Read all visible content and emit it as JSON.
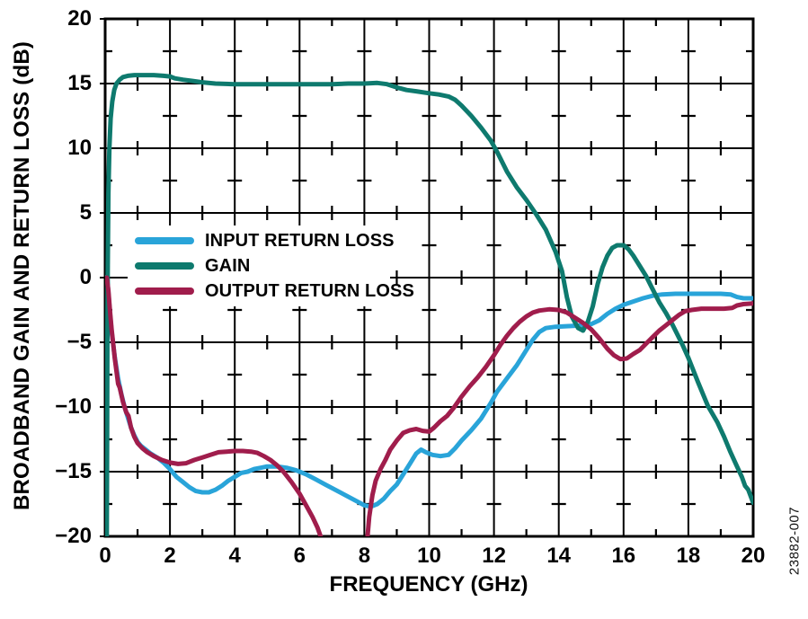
{
  "figure": {
    "watermark": "23882-007",
    "background": "#ffffff",
    "grid_color": "#000000",
    "border_color": "#000000"
  },
  "chart_data": {
    "type": "line",
    "title": "",
    "xlabel": "FREQUENCY (GHz)",
    "ylabel": "BROADBAND GAIN AND RETURN LOSS (dB)",
    "xlim": [
      0,
      20
    ],
    "ylim": [
      -20,
      20
    ],
    "x_ticks": [
      0,
      2,
      4,
      6,
      8,
      10,
      12,
      14,
      16,
      18,
      20
    ],
    "y_ticks": [
      20,
      15,
      10,
      5,
      0,
      -5,
      -10,
      -15,
      -20
    ],
    "x_minor_positions": [
      1,
      3,
      5,
      7,
      9,
      11,
      13,
      15,
      17,
      19
    ],
    "y_minor_positions": [
      17.5,
      12.5,
      7.5,
      2.5,
      -2.5,
      -7.5,
      -12.5,
      -17.5
    ],
    "grid": true,
    "legend_position": "inside-upper-left",
    "series": [
      {
        "name": "INPUT RETURN LOSS",
        "color": "#29A4D9",
        "segments": [
          [
            [
              0.06,
              0.1
            ],
            [
              0.1,
              -1.2
            ],
            [
              0.15,
              -2.8
            ],
            [
              0.2,
              -4.2
            ],
            [
              0.3,
              -6.2
            ],
            [
              0.4,
              -7.8
            ],
            [
              0.5,
              -9.0
            ],
            [
              0.6,
              -10.0
            ],
            [
              0.7,
              -10.8
            ],
            [
              0.8,
              -11.6
            ],
            [
              0.9,
              -12.2
            ],
            [
              1.0,
              -12.7
            ],
            [
              1.1,
              -13.0
            ],
            [
              1.25,
              -13.3
            ],
            [
              1.4,
              -13.6
            ],
            [
              1.6,
              -13.9
            ],
            [
              1.8,
              -14.3
            ],
            [
              2.0,
              -14.8
            ],
            [
              2.2,
              -15.4
            ],
            [
              2.4,
              -15.8
            ],
            [
              2.6,
              -16.2
            ],
            [
              2.8,
              -16.5
            ],
            [
              3.0,
              -16.6
            ],
            [
              3.2,
              -16.6
            ],
            [
              3.4,
              -16.4
            ],
            [
              3.6,
              -16.1
            ],
            [
              3.8,
              -15.7
            ],
            [
              4.0,
              -15.4
            ],
            [
              4.2,
              -15.1
            ],
            [
              4.4,
              -15.0
            ],
            [
              4.6,
              -14.8
            ],
            [
              4.8,
              -14.7
            ],
            [
              5.0,
              -14.6
            ],
            [
              5.3,
              -14.6
            ],
            [
              5.6,
              -14.7
            ],
            [
              5.9,
              -14.9
            ],
            [
              6.2,
              -15.2
            ],
            [
              6.5,
              -15.6
            ],
            [
              6.8,
              -16.0
            ],
            [
              7.1,
              -16.4
            ],
            [
              7.4,
              -16.8
            ],
            [
              7.7,
              -17.2
            ],
            [
              8.0,
              -17.6
            ],
            [
              8.2,
              -17.7
            ],
            [
              8.4,
              -17.5
            ],
            [
              8.6,
              -17.1
            ],
            [
              8.8,
              -16.5
            ],
            [
              9.0,
              -16.0
            ],
            [
              9.2,
              -15.2
            ],
            [
              9.4,
              -14.4
            ],
            [
              9.6,
              -13.6
            ],
            [
              9.75,
              -13.3
            ],
            [
              9.9,
              -13.5
            ],
            [
              10.1,
              -13.7
            ],
            [
              10.35,
              -13.8
            ],
            [
              10.6,
              -13.7
            ],
            [
              10.8,
              -13.2
            ],
            [
              11.0,
              -12.6
            ],
            [
              11.3,
              -11.8
            ],
            [
              11.6,
              -10.9
            ],
            [
              11.9,
              -9.7
            ],
            [
              12.1,
              -8.8
            ],
            [
              12.4,
              -7.8
            ],
            [
              12.7,
              -6.8
            ],
            [
              13.0,
              -5.6
            ],
            [
              13.2,
              -4.8
            ],
            [
              13.4,
              -4.2
            ],
            [
              13.6,
              -3.9
            ],
            [
              13.9,
              -3.8
            ],
            [
              14.3,
              -3.75
            ],
            [
              14.7,
              -3.7
            ],
            [
              15.0,
              -3.6
            ],
            [
              15.25,
              -3.3
            ],
            [
              15.5,
              -2.8
            ],
            [
              15.75,
              -2.4
            ],
            [
              16.0,
              -2.1
            ],
            [
              16.3,
              -1.85
            ],
            [
              16.6,
              -1.6
            ],
            [
              16.9,
              -1.4
            ],
            [
              17.2,
              -1.3
            ],
            [
              17.6,
              -1.25
            ],
            [
              18.0,
              -1.25
            ],
            [
              18.5,
              -1.25
            ],
            [
              19.0,
              -1.25
            ],
            [
              19.3,
              -1.3
            ],
            [
              19.5,
              -1.5
            ],
            [
              19.7,
              -1.6
            ],
            [
              20.0,
              -1.6
            ]
          ]
        ]
      },
      {
        "name": "GAIN",
        "color": "#0E7A6E",
        "segments": [
          [
            [
              0.05,
              -20.5
            ],
            [
              0.06,
              -12
            ],
            [
              0.07,
              -4
            ],
            [
              0.08,
              1
            ],
            [
              0.1,
              6.5
            ],
            [
              0.13,
              10
            ],
            [
              0.17,
              12.3
            ],
            [
              0.22,
              13.6
            ],
            [
              0.28,
              14.5
            ],
            [
              0.35,
              15.0
            ],
            [
              0.45,
              15.3
            ],
            [
              0.55,
              15.5
            ],
            [
              0.7,
              15.6
            ],
            [
              0.9,
              15.65
            ],
            [
              1.2,
              15.65
            ],
            [
              1.5,
              15.65
            ],
            [
              1.8,
              15.6
            ],
            [
              2.0,
              15.55
            ],
            [
              2.15,
              15.4
            ],
            [
              2.4,
              15.3
            ],
            [
              2.7,
              15.2
            ],
            [
              3.0,
              15.1
            ],
            [
              3.4,
              15.0
            ],
            [
              4.0,
              14.95
            ],
            [
              4.5,
              14.95
            ],
            [
              5.0,
              14.95
            ],
            [
              5.5,
              14.95
            ],
            [
              6.0,
              14.95
            ],
            [
              6.5,
              14.95
            ],
            [
              7.0,
              14.95
            ],
            [
              7.5,
              15.0
            ],
            [
              8.0,
              15.0
            ],
            [
              8.4,
              15.05
            ],
            [
              8.7,
              14.95
            ],
            [
              9.0,
              14.7
            ],
            [
              9.3,
              14.5
            ],
            [
              9.6,
              14.4
            ],
            [
              10.0,
              14.25
            ],
            [
              10.3,
              14.15
            ],
            [
              10.6,
              14.0
            ],
            [
              10.8,
              13.75
            ],
            [
              11.0,
              13.3
            ],
            [
              11.3,
              12.5
            ],
            [
              11.6,
              11.6
            ],
            [
              11.9,
              10.6
            ],
            [
              12.1,
              9.7
            ],
            [
              12.4,
              8.2
            ],
            [
              12.7,
              7.0
            ],
            [
              13.0,
              6.0
            ],
            [
              13.3,
              4.9
            ],
            [
              13.6,
              3.7
            ],
            [
              13.9,
              2.0
            ],
            [
              14.1,
              0.5
            ],
            [
              14.25,
              -1.5
            ],
            [
              14.4,
              -3.0
            ],
            [
              14.6,
              -3.9
            ],
            [
              14.75,
              -4.1
            ],
            [
              14.9,
              -3.4
            ],
            [
              15.05,
              -2.2
            ],
            [
              15.2,
              -0.5
            ],
            [
              15.35,
              0.8
            ],
            [
              15.5,
              1.7
            ],
            [
              15.65,
              2.3
            ],
            [
              15.8,
              2.5
            ],
            [
              16.0,
              2.5
            ],
            [
              16.15,
              2.2
            ],
            [
              16.3,
              1.7
            ],
            [
              16.5,
              0.9
            ],
            [
              16.7,
              0.1
            ],
            [
              16.9,
              -0.9
            ],
            [
              17.1,
              -1.9
            ],
            [
              17.3,
              -2.7
            ],
            [
              17.5,
              -3.6
            ],
            [
              17.8,
              -5.1
            ],
            [
              18.0,
              -6.2
            ],
            [
              18.3,
              -8.1
            ],
            [
              18.6,
              -9.9
            ],
            [
              18.9,
              -11.2
            ],
            [
              19.1,
              -12.3
            ],
            [
              19.3,
              -13.5
            ],
            [
              19.5,
              -14.6
            ],
            [
              19.65,
              -15.4
            ],
            [
              19.75,
              -16.1
            ],
            [
              19.85,
              -16.4
            ],
            [
              20.0,
              -17.4
            ]
          ]
        ]
      },
      {
        "name": "OUTPUT RETURN LOSS",
        "color": "#A01D4C",
        "segments": [
          [
            [
              0.05,
              0.0
            ],
            [
              0.1,
              -1.0
            ],
            [
              0.15,
              -2.6
            ],
            [
              0.2,
              -4.0
            ],
            [
              0.3,
              -6.3
            ],
            [
              0.4,
              -8.2
            ],
            [
              0.45,
              -8.5
            ],
            [
              0.55,
              -9.6
            ],
            [
              0.65,
              -10.4
            ],
            [
              0.72,
              -10.7
            ],
            [
              0.8,
              -11.6
            ],
            [
              0.9,
              -12.3
            ],
            [
              1.0,
              -12.8
            ],
            [
              1.15,
              -13.2
            ],
            [
              1.3,
              -13.5
            ],
            [
              1.5,
              -13.8
            ],
            [
              1.75,
              -14.1
            ],
            [
              2.0,
              -14.3
            ],
            [
              2.25,
              -14.4
            ],
            [
              2.5,
              -14.35
            ],
            [
              2.75,
              -14.1
            ],
            [
              3.0,
              -13.9
            ],
            [
              3.25,
              -13.7
            ],
            [
              3.5,
              -13.5
            ],
            [
              3.75,
              -13.45
            ],
            [
              4.0,
              -13.4
            ],
            [
              4.25,
              -13.4
            ],
            [
              4.5,
              -13.45
            ],
            [
              4.7,
              -13.55
            ],
            [
              4.9,
              -13.8
            ],
            [
              5.1,
              -14.1
            ],
            [
              5.3,
              -14.5
            ],
            [
              5.5,
              -15.0
            ],
            [
              5.75,
              -15.8
            ],
            [
              6.0,
              -16.7
            ],
            [
              6.2,
              -17.6
            ],
            [
              6.4,
              -18.5
            ],
            [
              6.55,
              -19.3
            ],
            [
              6.72,
              -20.5
            ]
          ],
          [
            [
              8.08,
              -20.5
            ],
            [
              8.15,
              -18.5
            ],
            [
              8.25,
              -16.8
            ],
            [
              8.35,
              -15.7
            ],
            [
              8.5,
              -14.8
            ],
            [
              8.65,
              -14.1
            ],
            [
              8.8,
              -13.3
            ],
            [
              9.0,
              -12.6
            ],
            [
              9.2,
              -12.0
            ],
            [
              9.4,
              -11.8
            ],
            [
              9.6,
              -11.7
            ],
            [
              9.8,
              -11.85
            ],
            [
              10.0,
              -11.9
            ],
            [
              10.15,
              -11.6
            ],
            [
              10.35,
              -11.1
            ],
            [
              10.55,
              -10.7
            ],
            [
              10.75,
              -10.1
            ],
            [
              11.0,
              -9.2
            ],
            [
              11.25,
              -8.4
            ],
            [
              11.5,
              -7.7
            ],
            [
              11.75,
              -6.9
            ],
            [
              12.0,
              -6.0
            ],
            [
              12.2,
              -5.2
            ],
            [
              12.4,
              -4.5
            ],
            [
              12.6,
              -3.9
            ],
            [
              12.8,
              -3.4
            ],
            [
              13.0,
              -3.0
            ],
            [
              13.2,
              -2.7
            ],
            [
              13.4,
              -2.55
            ],
            [
              13.7,
              -2.45
            ],
            [
              14.0,
              -2.5
            ],
            [
              14.25,
              -2.7
            ],
            [
              14.5,
              -3.1
            ],
            [
              14.75,
              -3.5
            ],
            [
              15.0,
              -4.0
            ],
            [
              15.25,
              -4.7
            ],
            [
              15.5,
              -5.5
            ],
            [
              15.7,
              -6.0
            ],
            [
              15.9,
              -6.3
            ],
            [
              16.1,
              -6.25
            ],
            [
              16.3,
              -5.9
            ],
            [
              16.5,
              -5.6
            ],
            [
              16.7,
              -5.1
            ],
            [
              16.9,
              -4.6
            ],
            [
              17.1,
              -4.1
            ],
            [
              17.3,
              -3.7
            ],
            [
              17.5,
              -3.3
            ],
            [
              17.7,
              -2.9
            ],
            [
              17.9,
              -2.6
            ],
            [
              18.1,
              -2.5
            ],
            [
              18.4,
              -2.4
            ],
            [
              18.8,
              -2.4
            ],
            [
              19.1,
              -2.4
            ],
            [
              19.35,
              -2.35
            ],
            [
              19.5,
              -2.15
            ],
            [
              19.7,
              -2.05
            ],
            [
              20.0,
              -2.0
            ]
          ]
        ]
      }
    ]
  }
}
